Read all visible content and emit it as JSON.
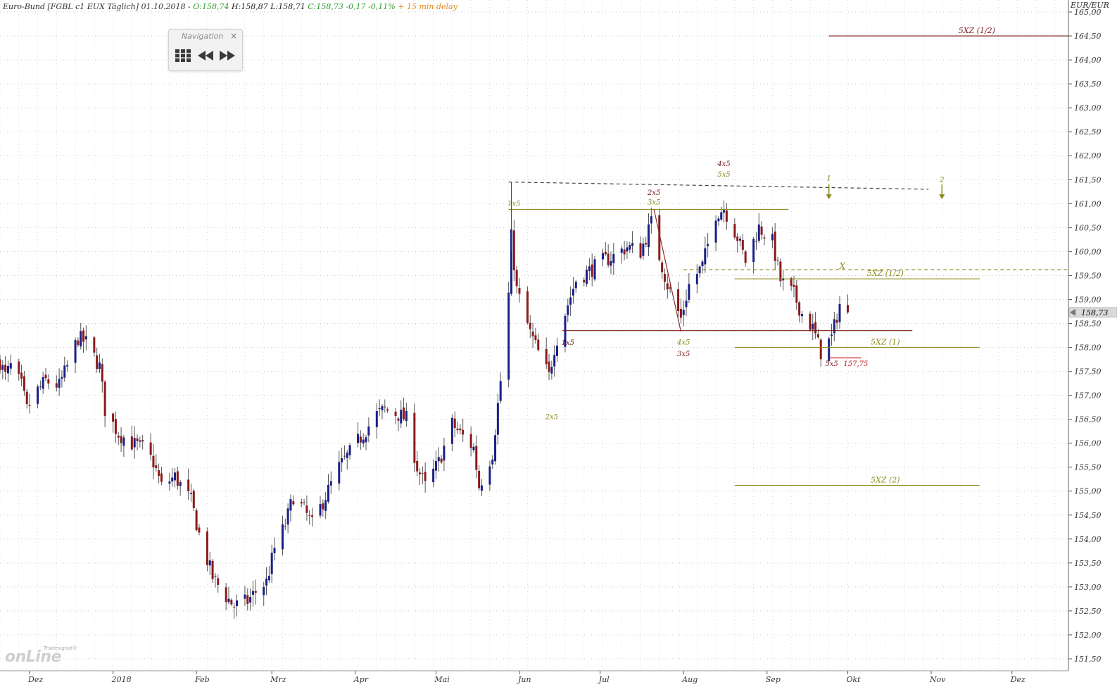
{
  "header": {
    "title": "Euro-Bund [FGBL c1 EUX Täglich] 01.10.2018 -",
    "open": "O:158,74",
    "high_low": "H:158,87 L:158,71",
    "close": "C:158,73 -0,17 -0,11%",
    "delay": "+ 15 min delay"
  },
  "navigation": {
    "title": "Navigation",
    "close_symbol": "×"
  },
  "logo": {
    "small_text": "Tradesignal®",
    "big_text": "onLine"
  },
  "colors": {
    "bull": "#1b1f86",
    "bear": "#8b1a1a",
    "olive": "#8a8a1e",
    "maroon": "#7a1a1a",
    "grid": "#c8c8c8",
    "axis_text": "#333333",
    "price_tag_bg": "#d9d9d9"
  },
  "chart_data": {
    "type": "candlestick",
    "unit_label": "EUR/EUR",
    "y_ticks": [
      "165,00",
      "164,50",
      "164,00",
      "163,50",
      "163,00",
      "162,50",
      "162,00",
      "161,50",
      "161,00",
      "160,50",
      "160,00",
      "159,50",
      "159,00",
      "158,50",
      "158,00",
      "157,50",
      "157,00",
      "156,50",
      "156,00",
      "155,50",
      "155,00",
      "154,50",
      "154,00",
      "153,50",
      "153,00",
      "152,50",
      "152,00",
      "151,50"
    ],
    "ylim": [
      151.25,
      165.25
    ],
    "x_start": "2017-11-20",
    "x_end": "2018-12-22",
    "x_labels": [
      {
        "label": "Dez",
        "date": "2017-12-01"
      },
      {
        "label": "2018",
        "date": "2018-01-01"
      },
      {
        "label": "Feb",
        "date": "2018-02-01"
      },
      {
        "label": "Mrz",
        "date": "2018-03-01"
      },
      {
        "label": "Apr",
        "date": "2018-04-01"
      },
      {
        "label": "Mai",
        "date": "2018-05-01"
      },
      {
        "label": "Jun",
        "date": "2018-06-01"
      },
      {
        "label": "Jul",
        "date": "2018-07-01"
      },
      {
        "label": "Aug",
        "date": "2018-08-01"
      },
      {
        "label": "Sep",
        "date": "2018-09-01"
      },
      {
        "label": "Okt",
        "date": "2018-10-01"
      },
      {
        "label": "Nov",
        "date": "2018-11-01"
      },
      {
        "label": "Dez",
        "date": "2018-12-01"
      }
    ],
    "current_price_label": "158,73",
    "current_price": 158.73,
    "price_anchors": [
      [
        "2017-11-20",
        157.7
      ],
      [
        "2017-11-22",
        157.4
      ],
      [
        "2017-11-24",
        157.6
      ],
      [
        "2017-11-28",
        157.2
      ],
      [
        "2017-11-30",
        156.7
      ],
      [
        "2017-12-04",
        157.1
      ],
      [
        "2017-12-07",
        157.3
      ],
      [
        "2017-12-12",
        157.2
      ],
      [
        "2017-12-15",
        157.6
      ],
      [
        "2017-12-19",
        158.2
      ],
      [
        "2017-12-22",
        158.1
      ],
      [
        "2017-12-27",
        157.6
      ],
      [
        "2017-12-29",
        156.7
      ],
      [
        "2018-01-03",
        156.2
      ],
      [
        "2018-01-08",
        156.0
      ],
      [
        "2018-01-12",
        155.9
      ],
      [
        "2018-01-16",
        155.6
      ],
      [
        "2018-01-19",
        155.1
      ],
      [
        "2018-01-24",
        155.3
      ],
      [
        "2018-01-30",
        154.8
      ],
      [
        "2018-02-02",
        154.1
      ],
      [
        "2018-02-07",
        153.2
      ],
      [
        "2018-02-12",
        152.8
      ],
      [
        "2018-02-15",
        152.6
      ],
      [
        "2018-02-20",
        152.7
      ],
      [
        "2018-02-23",
        152.9
      ],
      [
        "2018-02-27",
        153.1
      ],
      [
        "2018-03-02",
        153.8
      ],
      [
        "2018-03-06",
        154.3
      ],
      [
        "2018-03-09",
        154.9
      ],
      [
        "2018-03-13",
        154.6
      ],
      [
        "2018-03-16",
        154.3
      ],
      [
        "2018-03-21",
        154.9
      ],
      [
        "2018-03-26",
        155.5
      ],
      [
        "2018-03-30",
        155.8
      ],
      [
        "2018-04-04",
        156.2
      ],
      [
        "2018-04-09",
        156.6
      ],
      [
        "2018-04-12",
        156.7
      ],
      [
        "2018-04-17",
        156.6
      ],
      [
        "2018-04-20",
        156.5
      ],
      [
        "2018-04-24",
        155.5
      ],
      [
        "2018-04-27",
        155.1
      ],
      [
        "2018-05-02",
        155.6
      ],
      [
        "2018-05-07",
        156.4
      ],
      [
        "2018-05-10",
        156.2
      ],
      [
        "2018-05-15",
        155.9
      ],
      [
        "2018-05-17",
        155.1
      ],
      [
        "2018-05-22",
        155.8
      ],
      [
        "2018-05-25",
        157.3
      ],
      [
        "2018-05-28",
        159.1
      ],
      [
        "2018-05-29",
        160.3
      ],
      [
        "2018-05-31",
        159.2
      ],
      [
        "2018-06-05",
        158.3
      ],
      [
        "2018-06-08",
        157.9
      ],
      [
        "2018-06-12",
        157.4
      ],
      [
        "2018-06-14",
        158.0
      ],
      [
        "2018-06-19",
        158.9
      ],
      [
        "2018-06-22",
        159.4
      ],
      [
        "2018-06-27",
        159.6
      ],
      [
        "2018-07-02",
        159.8
      ],
      [
        "2018-07-06",
        159.9
      ],
      [
        "2018-07-11",
        160.1
      ],
      [
        "2018-07-16",
        160.0
      ],
      [
        "2018-07-20",
        160.6
      ],
      [
        "2018-07-23",
        159.9
      ],
      [
        "2018-07-26",
        159.3
      ],
      [
        "2018-07-31",
        158.6
      ],
      [
        "2018-08-03",
        159.3
      ],
      [
        "2018-08-08",
        159.7
      ],
      [
        "2018-08-13",
        160.8
      ],
      [
        "2018-08-16",
        160.9
      ],
      [
        "2018-08-21",
        160.3
      ],
      [
        "2018-08-24",
        159.8
      ],
      [
        "2018-08-29",
        160.5
      ],
      [
        "2018-09-03",
        160.2
      ],
      [
        "2018-09-06",
        159.4
      ],
      [
        "2018-09-11",
        159.1
      ],
      [
        "2018-09-14",
        158.7
      ],
      [
        "2018-09-18",
        158.4
      ],
      [
        "2018-09-21",
        157.9
      ],
      [
        "2018-09-25",
        158.2
      ],
      [
        "2018-09-28",
        158.9
      ],
      [
        "2018-10-01",
        158.73
      ]
    ],
    "horizontal_lines": [
      {
        "label": "5XZ (1/2)",
        "y": 164.5,
        "from": "2018-09-24",
        "to": "2018-12-22",
        "style": "maroon"
      },
      {
        "label": "5XZ (1/2)",
        "y": 159.43,
        "from": "2018-08-20",
        "to": "2018-11-19",
        "style": "olive"
      },
      {
        "label": "5XZ (1)",
        "y": 158.0,
        "from": "2018-08-20",
        "to": "2018-11-19",
        "style": "olive"
      },
      {
        "label": "5XZ (2)",
        "y": 155.12,
        "from": "2018-08-20",
        "to": "2018-11-19",
        "style": "olive"
      },
      {
        "label": "",
        "y": 160.88,
        "from": "2018-05-28",
        "to": "2018-09-09",
        "style": "olive"
      },
      {
        "label": "",
        "y": 158.35,
        "from": "2018-06-17",
        "to": "2018-10-25",
        "style": "maroon"
      },
      {
        "label": "",
        "y": 157.78,
        "from": "2018-09-24",
        "to": "2018-10-06",
        "style": "red"
      }
    ],
    "dashed_lines": [
      {
        "from": [
          "2018-05-28",
          161.45
        ],
        "to": [
          "2018-10-31",
          161.3
        ],
        "style": "dark"
      },
      {
        "from": [
          "2018-08-01",
          159.62
        ],
        "to": [
          "2018-12-22",
          159.62
        ],
        "style": "olive"
      }
    ],
    "wave_labels": [
      {
        "text": "1x5",
        "date": "2018-05-30",
        "y": 160.95,
        "style": "olive"
      },
      {
        "text": "1x5",
        "date": "2018-06-19",
        "y": 158.05,
        "style": "maroon"
      },
      {
        "text": "2x5",
        "date": "2018-06-13",
        "y": 156.5,
        "style": "olive"
      },
      {
        "text": "2x5",
        "date": "2018-07-21",
        "y": 161.18,
        "style": "maroon"
      },
      {
        "text": "3x5",
        "date": "2018-07-21",
        "y": 160.98,
        "style": "olive"
      },
      {
        "text": "4x5",
        "date": "2018-08-01",
        "y": 158.06,
        "style": "olive"
      },
      {
        "text": "3x5",
        "date": "2018-08-01",
        "y": 157.82,
        "style": "maroon"
      },
      {
        "text": "4x5",
        "date": "2018-08-16",
        "y": 161.78,
        "style": "maroon"
      },
      {
        "text": "5x5",
        "date": "2018-08-16",
        "y": 161.56,
        "style": "olive"
      },
      {
        "text": "5x5",
        "date": "2018-09-25",
        "y": 157.61,
        "style": "maroon"
      },
      {
        "text": "157,75",
        "date": "2018-10-04",
        "y": 157.61,
        "style": "red"
      },
      {
        "text": "X",
        "date": "2018-09-29",
        "y": 159.64,
        "style": "olive"
      },
      {
        "text": "1",
        "date": "2018-09-24",
        "y": 161.48,
        "style": "olive"
      },
      {
        "text": "2",
        "date": "2018-11-05",
        "y": 161.45,
        "style": "olive"
      }
    ],
    "arrows": [
      {
        "date": "2018-09-24",
        "y_top": 161.4,
        "y_bottom": 161.12
      },
      {
        "date": "2018-11-05",
        "y_top": 161.4,
        "y_bottom": 161.12
      }
    ],
    "zigzag": [
      [
        "2018-07-21",
        160.88
      ],
      [
        "2018-07-31",
        158.33
      ]
    ],
    "spike_line": [
      [
        "2018-05-29",
        160.0
      ],
      [
        "2018-05-29",
        161.45
      ]
    ]
  }
}
